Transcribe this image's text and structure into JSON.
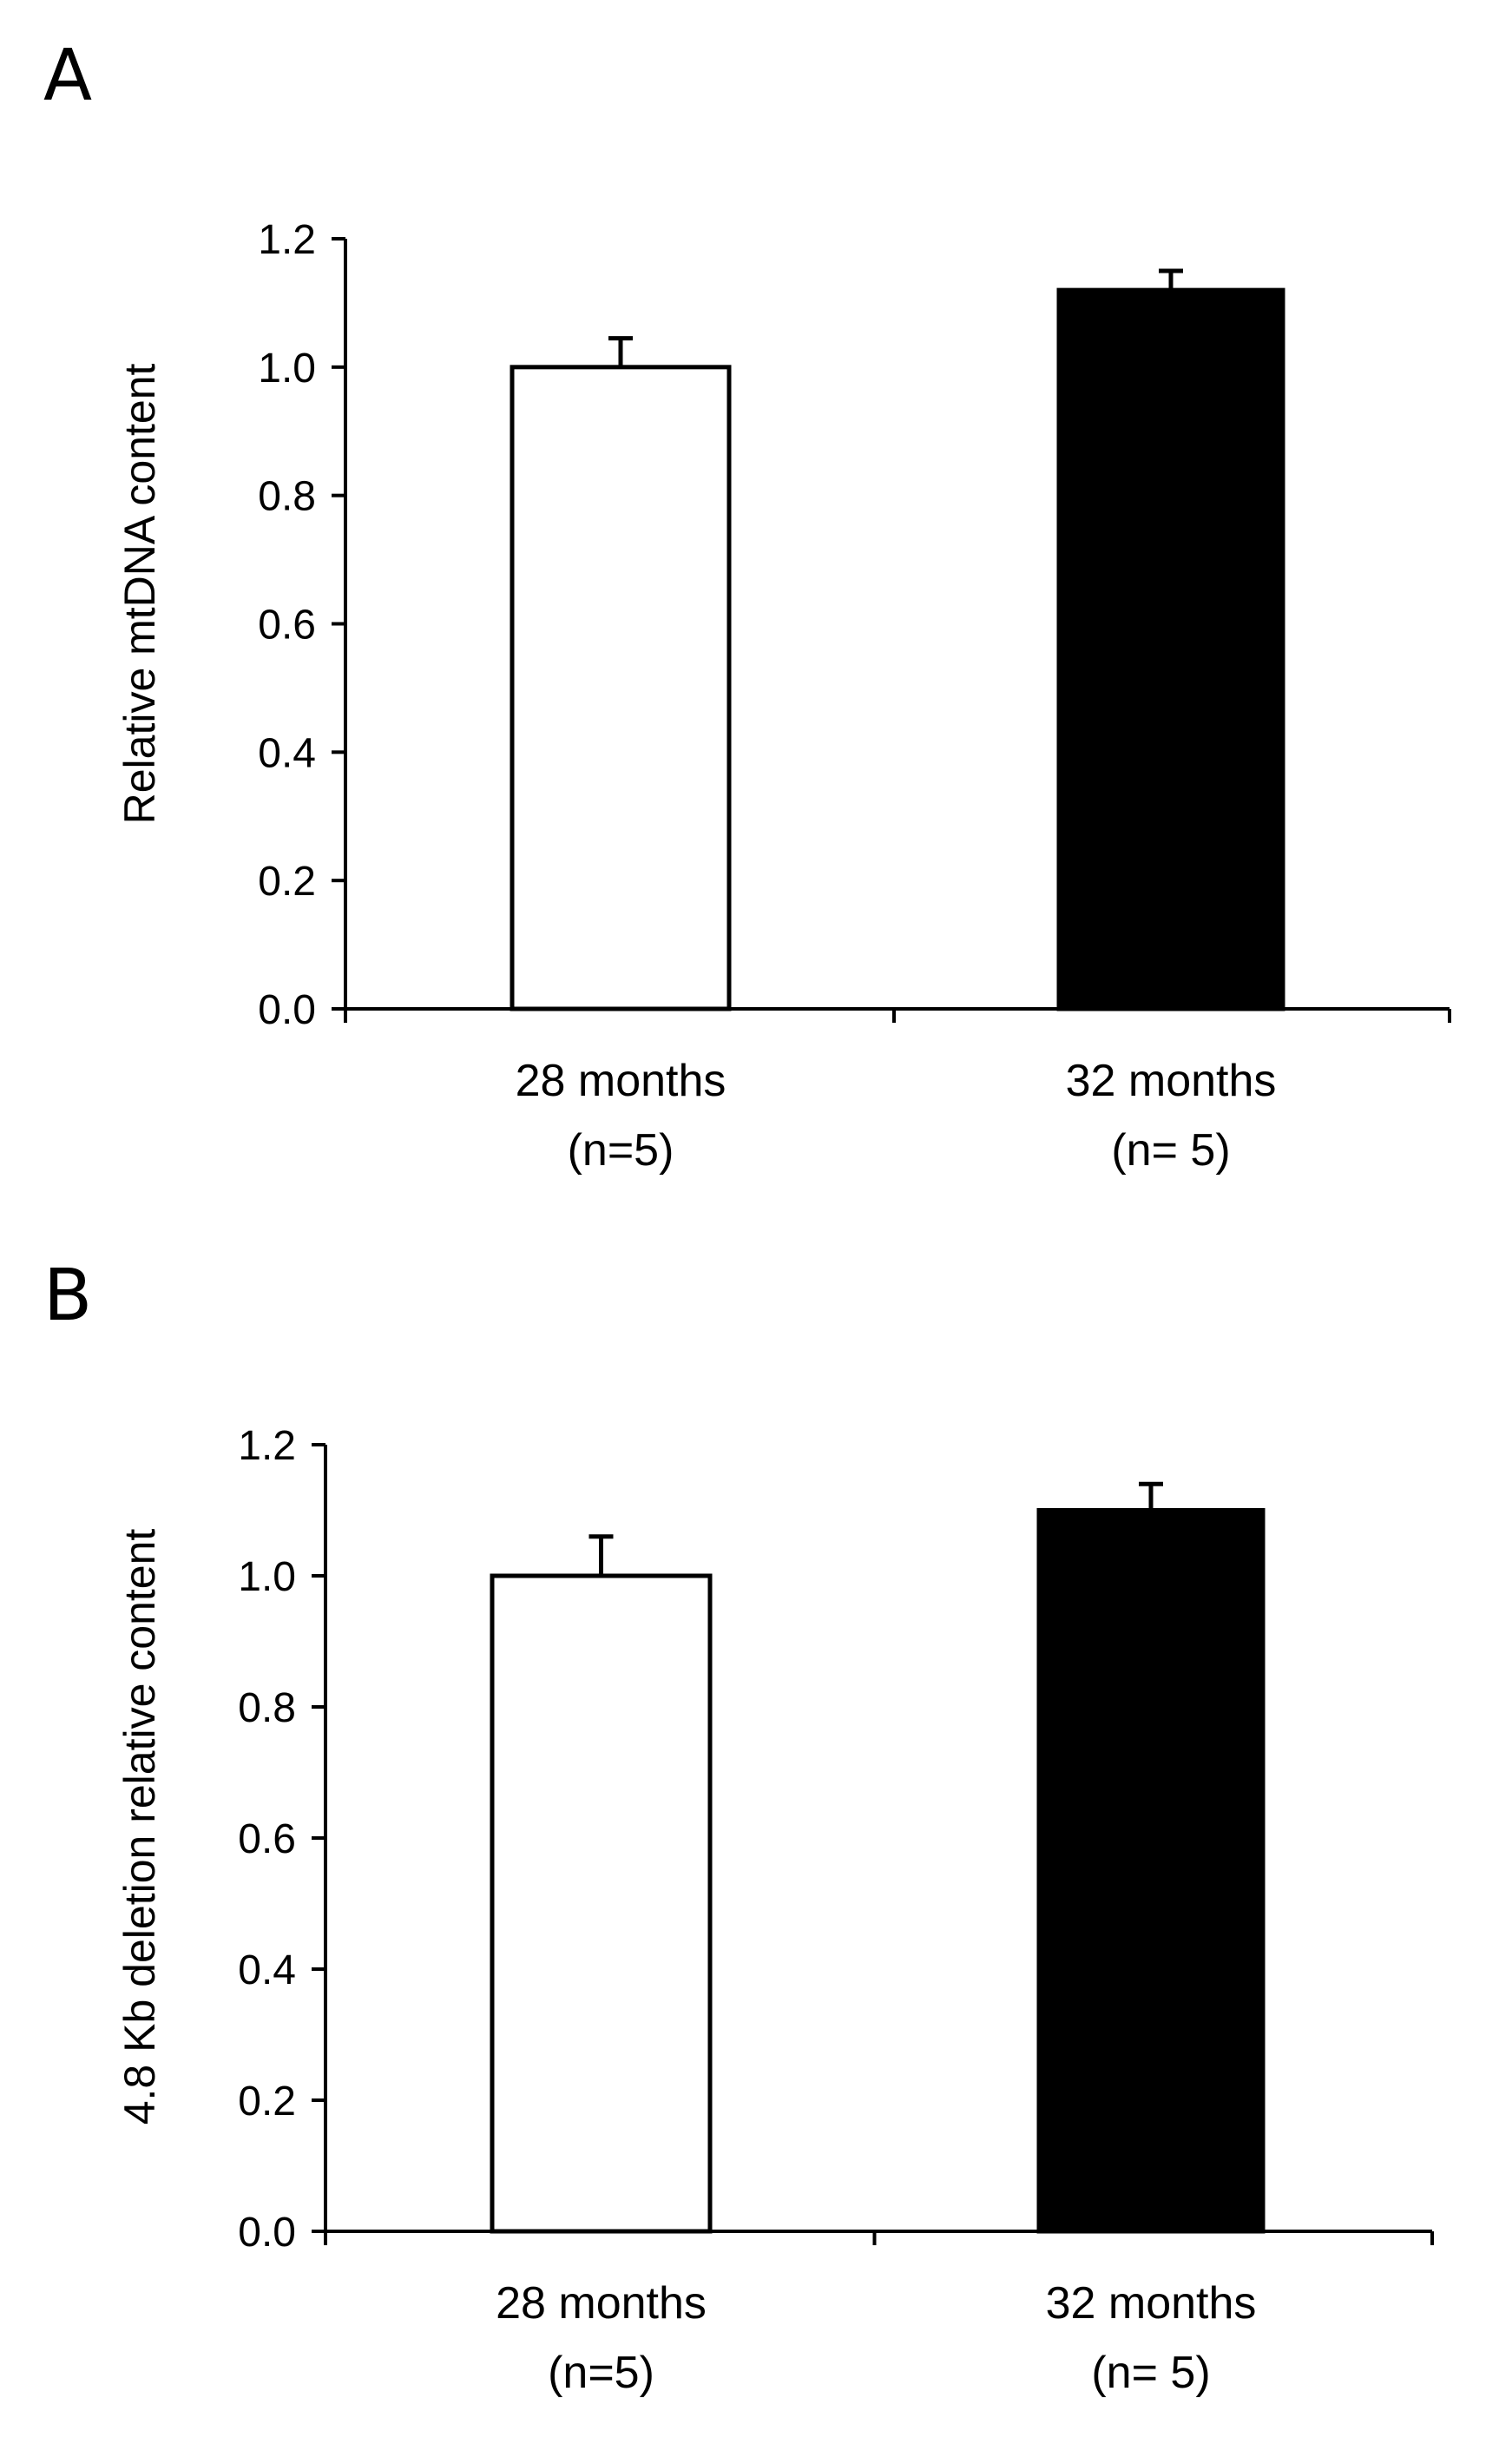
{
  "colors": {
    "bar_28_months": "#ffffff",
    "bar_32_months": "#000000",
    "axis": "#000000"
  },
  "chart_data": [
    {
      "panel": "A",
      "type": "bar",
      "ylabel": "Relative mtDNA content",
      "ylim": [
        0,
        1.2
      ],
      "yticks": [
        "0.0",
        "0.2",
        "0.4",
        "0.6",
        "0.8",
        "1.0",
        "1.2"
      ],
      "categories": [
        {
          "name": "28 months",
          "n_label": "(n=5)"
        },
        {
          "name": "32 months",
          "n_label": "(n= 5)"
        }
      ],
      "values": [
        1.0,
        1.12
      ],
      "error": [
        0.045,
        0.03
      ],
      "grid": false,
      "legend": "none"
    },
    {
      "panel": "B",
      "type": "bar",
      "ylabel": "4.8 Kb deletion relative content",
      "ylim": [
        0,
        1.2
      ],
      "yticks": [
        "0.0",
        "0.2",
        "0.4",
        "0.6",
        "0.8",
        "1.0",
        "1.2"
      ],
      "categories": [
        {
          "name": "28 months",
          "n_label": "(n=5)"
        },
        {
          "name": "32 months",
          "n_label": "(n= 5)"
        }
      ],
      "values": [
        1.0,
        1.1
      ],
      "error": [
        0.06,
        0.04
      ],
      "grid": false,
      "legend": "none"
    }
  ]
}
